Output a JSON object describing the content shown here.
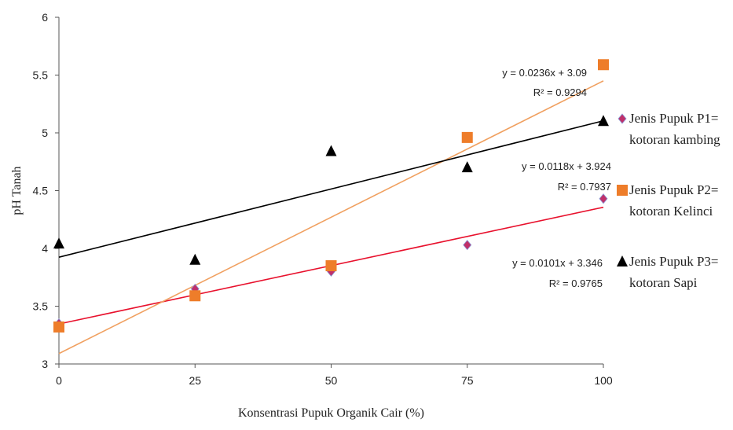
{
  "chart_data": {
    "type": "scatter",
    "title": "",
    "xlabel": "Konsentrasi Pupuk Organik Cair (%)",
    "ylabel": "pH Tanah",
    "xlim": [
      0,
      100
    ],
    "ylim": [
      3,
      6
    ],
    "xticks": [
      "0",
      "25",
      "50",
      "75",
      "100"
    ],
    "yticks": [
      "3",
      "3.5",
      "4",
      "4.5",
      "5",
      "5.5",
      "6"
    ],
    "grid": false,
    "legend_position": "right",
    "series": [
      {
        "name_lines": [
          "Jenis Pupuk P1=",
          "kotoran kambing"
        ],
        "marker": "diamond",
        "color": "#c0306a",
        "trend_color": "#e8112d",
        "x": [
          0,
          25,
          50,
          75,
          100
        ],
        "y": [
          3.35,
          3.65,
          3.8,
          4.03,
          4.43
        ],
        "trend": {
          "slope": 0.0101,
          "intercept": 3.346
        },
        "equation": "y = 0.0101x + 3.346",
        "r2": "R² = 0.9765"
      },
      {
        "name_lines": [
          "Jenis Pupuk P2=",
          "kotoran Kelinci"
        ],
        "marker": "square",
        "color": "#ee7d2a",
        "trend_color": "#f0a060",
        "x": [
          0,
          25,
          50,
          75,
          100
        ],
        "y": [
          3.32,
          3.59,
          3.85,
          4.96,
          5.59
        ],
        "trend": {
          "slope": 0.0236,
          "intercept": 3.09
        },
        "equation": "y = 0.0236x + 3.09",
        "r2": "R² = 0.9294"
      },
      {
        "name_lines": [
          "Jenis Pupuk P3=",
          "kotoran Sapi"
        ],
        "marker": "triangle",
        "color": "#000000",
        "trend_color": "#000000",
        "x": [
          0,
          25,
          50,
          75,
          100
        ],
        "y": [
          4.04,
          3.9,
          4.84,
          4.7,
          5.1
        ],
        "trend": {
          "slope": 0.0118,
          "intercept": 3.924
        },
        "equation": "y = 0.0118x + 3.924",
        "r2": "R² = 0.7937"
      }
    ]
  }
}
